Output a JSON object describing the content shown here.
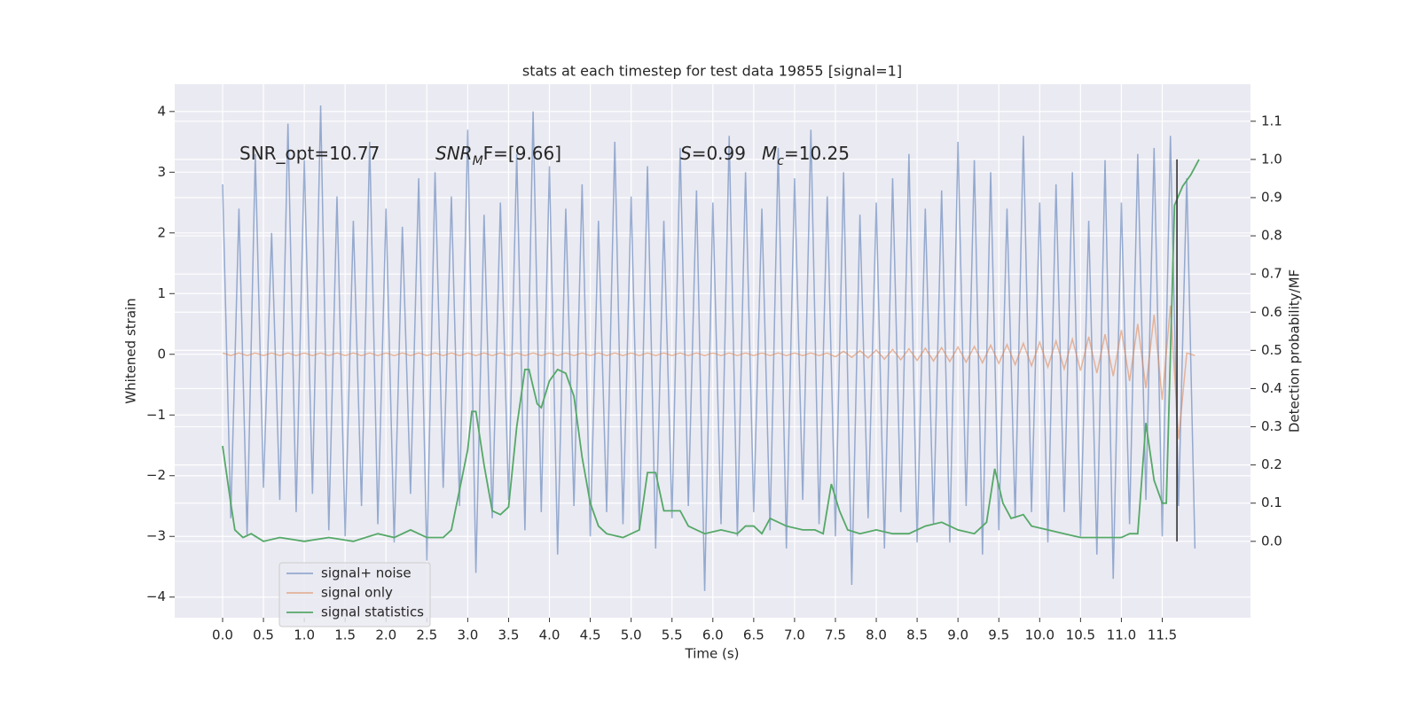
{
  "chart_data": {
    "type": "line",
    "title": "stats at each timestep for test data 19855 [signal=1]",
    "xlabel": "Time (s)",
    "ylabel": "Whitened strain",
    "y2label": "Detection probability/MF",
    "xlim": [
      -0.586,
      12.58
    ],
    "ylim": [
      -4.34,
      4.45
    ],
    "y2lim": [
      -0.2,
      1.197
    ],
    "xticks": [
      {
        "value": 0,
        "label": "0.0"
      },
      0.5,
      {
        "value": 1,
        "label": "1.0"
      },
      1.5,
      {
        "value": 2,
        "label": "2.0"
      },
      2.5,
      {
        "value": 3,
        "label": "3.0"
      },
      3.5,
      {
        "value": 4,
        "label": "4.0"
      },
      4.5,
      {
        "value": 5,
        "label": "5.0"
      },
      5.5,
      {
        "value": 6,
        "label": "6.0"
      },
      6.5,
      {
        "value": 7,
        "label": "7.0"
      },
      7.5,
      {
        "value": 8,
        "label": "8.0"
      },
      8.5,
      {
        "value": 9,
        "label": "9.0"
      },
      9.5,
      {
        "value": 10,
        "label": "10.0"
      },
      10.5,
      {
        "value": 11,
        "label": "11.0"
      },
      11.5
    ],
    "yticks": [
      {
        "value": -4,
        "label": "−4"
      },
      {
        "value": -3,
        "label": "−3"
      },
      {
        "value": -2,
        "label": "−2"
      },
      {
        "value": -1,
        "label": "−1"
      },
      0,
      1,
      2,
      3,
      4
    ],
    "y2ticks": [
      {
        "value": 0,
        "label": "0.0"
      },
      0.1,
      0.2,
      0.3,
      0.4,
      0.5,
      0.6,
      0.7,
      0.8,
      0.9,
      {
        "value": 1,
        "label": "1.0"
      },
      1.1
    ],
    "grid": true,
    "legend": "lower left",
    "x": [
      0,
      0.1,
      0.2,
      0.3,
      0.4,
      0.5,
      0.6,
      0.7,
      0.8,
      0.9,
      1,
      1.1,
      1.2,
      1.3,
      1.4,
      1.5,
      1.6,
      1.7,
      1.8,
      1.9,
      2,
      2.1,
      2.2,
      2.3,
      2.4,
      2.5,
      2.6,
      2.7,
      2.8,
      2.9,
      3,
      3.1,
      3.2,
      3.3,
      3.4,
      3.5,
      3.6,
      3.7,
      3.8,
      3.9,
      4,
      4.1,
      4.2,
      4.3,
      4.4,
      4.5,
      4.6,
      4.7,
      4.8,
      4.9,
      5,
      5.1,
      5.2,
      5.3,
      5.4,
      5.5,
      5.6,
      5.7,
      5.8,
      5.9,
      6,
      6.1,
      6.2,
      6.3,
      6.4,
      6.5,
      6.6,
      6.7,
      6.8,
      6.9,
      7,
      7.1,
      7.2,
      7.3,
      7.4,
      7.5,
      7.6,
      7.7,
      7.8,
      7.9,
      8,
      8.1,
      8.2,
      8.3,
      8.4,
      8.5,
      8.6,
      8.7,
      8.8,
      8.9,
      9,
      9.1,
      9.2,
      9.3,
      9.4,
      9.5,
      9.6,
      9.7,
      9.8,
      9.9,
      10,
      10.1,
      10.2,
      10.3,
      10.4,
      10.5,
      10.6,
      10.7,
      10.8,
      10.9,
      11,
      11.1,
      11.2,
      11.3,
      11.4,
      11.5,
      11.6,
      11.7,
      11.8,
      11.9
    ],
    "series": [
      {
        "name": "signal+ noise",
        "color": "#4c72b0",
        "values": [
          2.8,
          -2.7,
          2.4,
          -3.0,
          3.3,
          -2.2,
          2.0,
          -2.4,
          3.8,
          -2.6,
          3.2,
          -2.3,
          4.1,
          -2.9,
          2.6,
          -3.0,
          2.2,
          -2.5,
          3.5,
          -2.8,
          2.4,
          -3.1,
          2.1,
          -2.3,
          2.9,
          -3.4,
          3.0,
          -2.2,
          2.6,
          -2.5,
          3.7,
          -3.6,
          2.3,
          -2.7,
          2.5,
          -2.4,
          3.3,
          -2.9,
          4.0,
          -2.6,
          3.1,
          -3.3,
          2.4,
          -2.5,
          2.8,
          -3.0,
          2.2,
          -2.6,
          3.5,
          -2.8,
          2.6,
          -2.9,
          3.1,
          -3.2,
          2.2,
          -2.7,
          3.4,
          -2.5,
          2.7,
          -3.9,
          2.5,
          -2.8,
          3.6,
          -3.0,
          3.0,
          -2.6,
          2.4,
          -2.9,
          3.4,
          -3.2,
          2.9,
          -2.4,
          3.7,
          -2.8,
          2.6,
          -3.0,
          3.0,
          -3.8,
          2.3,
          -2.7,
          2.5,
          -3.2,
          2.9,
          -2.6,
          3.3,
          -3.1,
          2.4,
          -2.8,
          2.7,
          -3.1,
          3.5,
          -2.5,
          3.2,
          -3.3,
          3.0,
          -2.9,
          2.4,
          -2.7,
          3.6,
          -2.6,
          2.5,
          -3.1,
          2.8,
          -2.6,
          3.0,
          -3.0,
          2.2,
          -3.3,
          3.2,
          -3.7,
          2.5,
          -2.8,
          3.3,
          -2.4,
          3.4,
          -3.0,
          3.6,
          -2.5,
          2.9,
          -3.2
        ]
      },
      {
        "name": "signal only",
        "color": "#dd8452",
        "values": [
          0.02,
          -0.02,
          0.02,
          -0.02,
          0.02,
          -0.02,
          0.02,
          -0.02,
          0.02,
          -0.02,
          0.02,
          -0.02,
          0.02,
          -0.02,
          0.02,
          -0.02,
          0.02,
          -0.02,
          0.02,
          -0.02,
          0.02,
          -0.02,
          0.02,
          -0.02,
          0.02,
          -0.02,
          0.02,
          -0.02,
          0.02,
          -0.02,
          0.02,
          -0.02,
          0.02,
          -0.02,
          0.02,
          -0.02,
          0.02,
          -0.02,
          0.02,
          -0.02,
          0.02,
          -0.02,
          0.02,
          -0.02,
          0.02,
          -0.02,
          0.02,
          -0.02,
          0.02,
          -0.02,
          0.02,
          -0.02,
          0.02,
          -0.02,
          0.02,
          -0.02,
          0.02,
          -0.02,
          0.02,
          -0.02,
          0.02,
          -0.02,
          0.02,
          -0.02,
          0.02,
          -0.02,
          0.02,
          -0.02,
          0.02,
          -0.02,
          0.02,
          -0.02,
          0.02,
          -0.02,
          0.02,
          -0.04,
          0.05,
          -0.05,
          0.06,
          -0.06,
          0.07,
          -0.08,
          0.08,
          -0.09,
          0.09,
          -0.1,
          0.1,
          -0.11,
          0.11,
          -0.12,
          0.12,
          -0.13,
          0.13,
          -0.14,
          0.15,
          -0.15,
          0.16,
          -0.17,
          0.18,
          -0.19,
          0.2,
          -0.21,
          0.22,
          -0.24,
          0.25,
          -0.27,
          0.29,
          -0.31,
          0.33,
          -0.36,
          0.4,
          -0.44,
          0.5,
          -0.56,
          0.65,
          -0.75,
          0.8,
          -1.4,
          0.02,
          -0.02
        ]
      },
      {
        "name": "signal statistics",
        "color": "#55a868",
        "axis": "y2",
        "x": [
          0,
          0.1,
          0.15,
          0.25,
          0.35,
          0.5,
          0.7,
          1.0,
          1.3,
          1.6,
          1.9,
          2.1,
          2.3,
          2.5,
          2.7,
          2.8,
          3.0,
          3.05,
          3.1,
          3.2,
          3.3,
          3.4,
          3.5,
          3.6,
          3.7,
          3.75,
          3.85,
          3.9,
          4.0,
          4.1,
          4.2,
          4.3,
          4.4,
          4.5,
          4.6,
          4.7,
          4.9,
          5.1,
          5.2,
          5.3,
          5.4,
          5.5,
          5.6,
          5.7,
          5.8,
          5.9,
          6.1,
          6.3,
          6.4,
          6.5,
          6.6,
          6.7,
          6.9,
          7.1,
          7.25,
          7.35,
          7.45,
          7.55,
          7.65,
          7.8,
          8.0,
          8.2,
          8.4,
          8.6,
          8.8,
          9.0,
          9.2,
          9.35,
          9.45,
          9.55,
          9.65,
          9.8,
          9.9,
          10.1,
          10.3,
          10.5,
          10.8,
          11.0,
          11.1,
          11.2,
          11.3,
          11.4,
          11.5,
          11.55,
          11.65,
          11.75,
          11.85,
          11.95
        ],
        "values": [
          0.25,
          0.1,
          0.03,
          0.01,
          0.02,
          0.0,
          0.01,
          0.0,
          0.01,
          0.0,
          0.02,
          0.01,
          0.03,
          0.01,
          0.01,
          0.03,
          0.24,
          0.34,
          0.34,
          0.2,
          0.08,
          0.07,
          0.09,
          0.3,
          0.45,
          0.45,
          0.36,
          0.35,
          0.42,
          0.45,
          0.44,
          0.38,
          0.22,
          0.1,
          0.04,
          0.02,
          0.01,
          0.03,
          0.18,
          0.18,
          0.08,
          0.08,
          0.08,
          0.04,
          0.03,
          0.02,
          0.03,
          0.02,
          0.04,
          0.04,
          0.02,
          0.06,
          0.04,
          0.03,
          0.03,
          0.02,
          0.15,
          0.08,
          0.03,
          0.02,
          0.03,
          0.02,
          0.02,
          0.04,
          0.05,
          0.03,
          0.02,
          0.05,
          0.19,
          0.1,
          0.06,
          0.07,
          0.04,
          0.03,
          0.02,
          0.01,
          0.01,
          0.01,
          0.02,
          0.02,
          0.31,
          0.16,
          0.1,
          0.1,
          0.88,
          0.93,
          0.96,
          1.0
        ]
      }
    ],
    "vline": {
      "x": 11.68,
      "y2": [
        0,
        1
      ],
      "color": "#333333"
    },
    "annotations": [
      [
        {
          "text": "SNR_opt=10.77"
        }
      ],
      [
        {
          "text": "SNR",
          "italic": true
        },
        {
          "text": "M",
          "italic": true,
          "sub": true
        },
        {
          "text": "F=[9.66]"
        }
      ],
      [
        {
          "text": "S",
          "italic": true
        },
        {
          "text": "=0.99"
        }
      ],
      [
        {
          "text": "M",
          "italic": true
        },
        {
          "text": "c",
          "italic": true,
          "sub": true
        },
        {
          "text": "=10.25"
        }
      ]
    ]
  }
}
